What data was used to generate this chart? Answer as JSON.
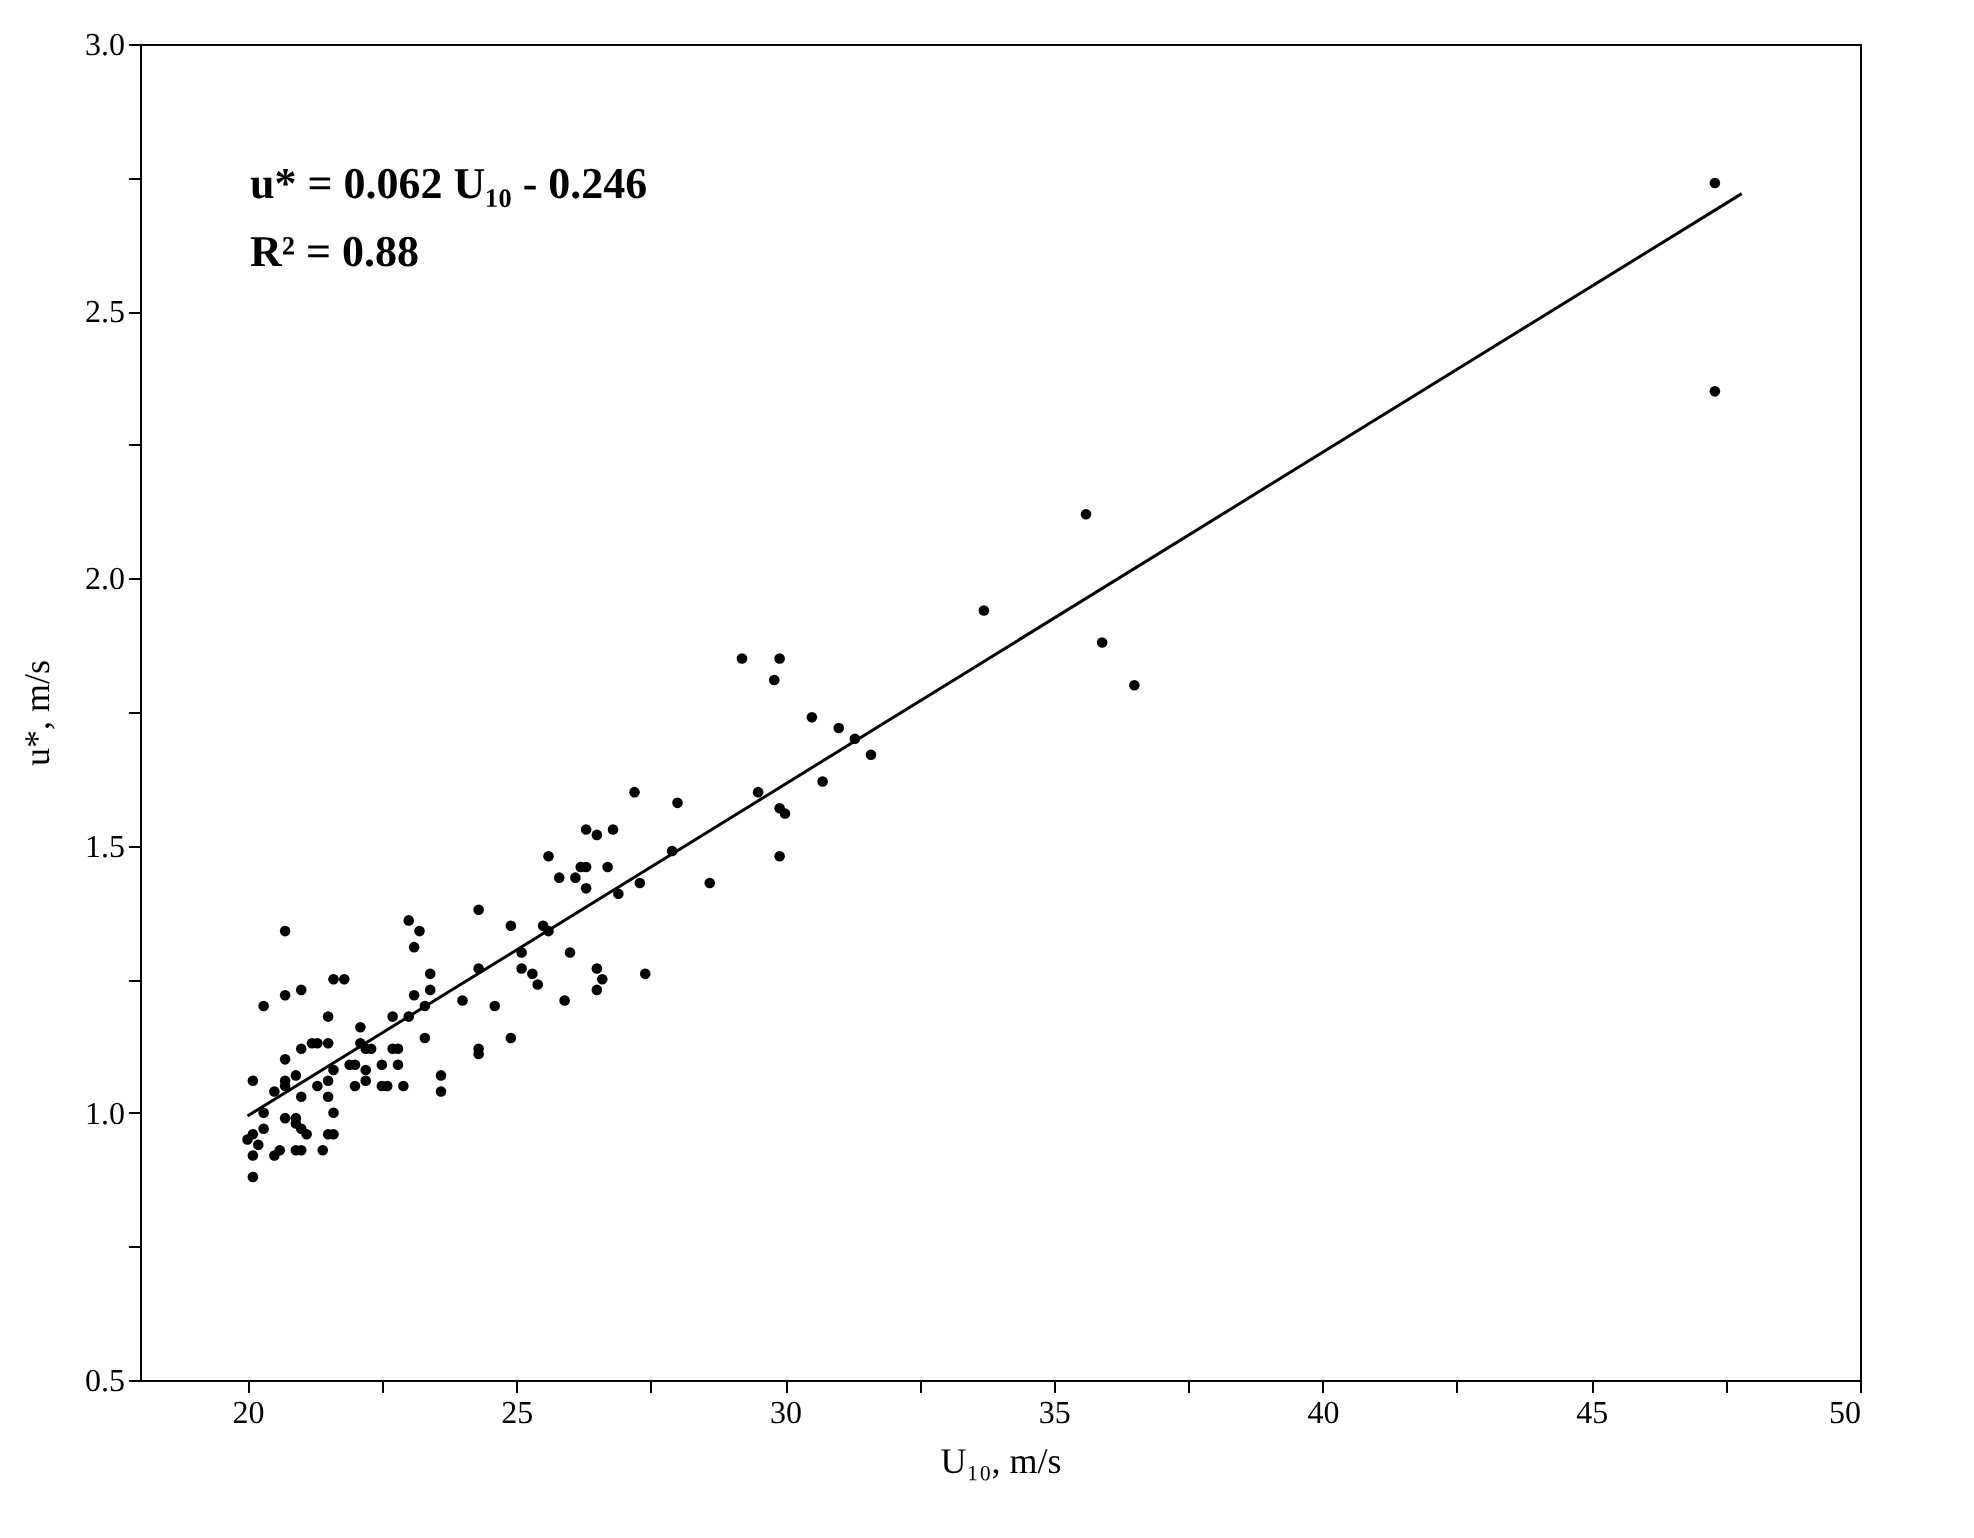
{
  "chart_data": {
    "type": "scatter",
    "xlabel": "U₁₀, m/s",
    "ylabel": "u*, m/s",
    "annotations": [
      "u* = 0.062 U₁₀ - 0.246",
      "R² = 0.88"
    ],
    "xlim": [
      18,
      50
    ],
    "ylim": [
      0.5,
      3.0
    ],
    "xticks": [
      20,
      {
        "value": 22.5,
        "label": null
      },
      25,
      {
        "value": 27.5,
        "label": null
      },
      30,
      {
        "value": 32.5,
        "label": null
      },
      35,
      {
        "value": 37.5,
        "label": null
      },
      40,
      {
        "value": 42.5,
        "label": null
      },
      45,
      {
        "value": 47.5,
        "label": null
      },
      50
    ],
    "yticks": [
      {
        "value": 0.5,
        "label": "0.5"
      },
      {
        "value": 0.75,
        "label": null
      },
      {
        "value": 1.0,
        "label": "1.0"
      },
      {
        "value": 1.25,
        "label": null
      },
      {
        "value": 1.5,
        "label": "1.5"
      },
      {
        "value": 1.75,
        "label": null
      },
      {
        "value": 2.0,
        "label": "2.0"
      },
      {
        "value": 2.25,
        "label": null
      },
      {
        "value": 2.5,
        "label": "2.5"
      },
      {
        "value": 2.75,
        "label": null
      },
      {
        "value": 3.0,
        "label": "3.0"
      }
    ],
    "grid": false,
    "marker": "circle",
    "series": [
      {
        "color": "#000000",
        "x": [
          25.6,
          25.8,
          20.7,
          23.0,
          23.2,
          23.1,
          24.3,
          24.9,
          25.5,
          25.6,
          20.3,
          20.7,
          21.0,
          21.6,
          21.8,
          23.4,
          23.4,
          23.1,
          24.3,
          25.1,
          25.1,
          25.3,
          25.4,
          24.0,
          24.6,
          25.9,
          21.5,
          22.7,
          23.0,
          23.3,
          23.3,
          21.0,
          21.2,
          21.3,
          21.5,
          22.1,
          22.1,
          22.2,
          22.3,
          20.7,
          21.6,
          21.9,
          22.0,
          22.2,
          22.7,
          22.8,
          22.5,
          22.8,
          24.3,
          24.3,
          24.9,
          20.1,
          20.5,
          20.7,
          20.7,
          20.9,
          21.3,
          21.5,
          22.0,
          22.2,
          22.5,
          22.6,
          22.9,
          23.6,
          23.6,
          21.0,
          21.5,
          20.3,
          20.7,
          20.9,
          21.6,
          20.9,
          20.0,
          20.1,
          20.3,
          21.0,
          21.1,
          21.5,
          21.6,
          20.2,
          20.1,
          20.5,
          20.6,
          20.9,
          21.0,
          21.4,
          20.1,
          29.2,
          29.9,
          29.8,
          30.5,
          31.0,
          31.3,
          31.6,
          30.7,
          29.5,
          29.9,
          30.0,
          29.9,
          27.2,
          28.0,
          26.3,
          26.5,
          26.8,
          26.2,
          26.3,
          26.7,
          26.1,
          26.3,
          27.9,
          27.3,
          26.9,
          28.6,
          26.0,
          26.5,
          26.6,
          26.5,
          27.4,
          47.3,
          35.6,
          33.7,
          35.9,
          36.5,
          47.3
        ],
        "values": [
          1.48,
          1.44,
          1.34,
          1.36,
          1.34,
          1.31,
          1.38,
          1.35,
          1.35,
          1.34,
          1.2,
          1.22,
          1.23,
          1.25,
          1.25,
          1.26,
          1.23,
          1.22,
          1.27,
          1.3,
          1.27,
          1.26,
          1.24,
          1.21,
          1.2,
          1.21,
          1.18,
          1.18,
          1.18,
          1.2,
          1.14,
          1.12,
          1.13,
          1.13,
          1.13,
          1.16,
          1.13,
          1.12,
          1.12,
          1.1,
          1.08,
          1.09,
          1.09,
          1.08,
          1.12,
          1.12,
          1.09,
          1.09,
          1.12,
          1.11,
          1.14,
          1.06,
          1.04,
          1.05,
          1.06,
          1.07,
          1.05,
          1.06,
          1.05,
          1.06,
          1.05,
          1.05,
          1.05,
          1.07,
          1.04,
          1.03,
          1.03,
          1.0,
          0.99,
          0.99,
          1.0,
          0.98,
          0.95,
          0.96,
          0.97,
          0.97,
          0.96,
          0.96,
          0.96,
          0.94,
          0.92,
          0.92,
          0.93,
          0.93,
          0.93,
          0.93,
          0.88,
          1.85,
          1.85,
          1.81,
          1.74,
          1.72,
          1.7,
          1.67,
          1.62,
          1.6,
          1.57,
          1.56,
          1.48,
          1.6,
          1.58,
          1.53,
          1.52,
          1.53,
          1.46,
          1.46,
          1.46,
          1.44,
          1.42,
          1.49,
          1.43,
          1.41,
          1.43,
          1.3,
          1.27,
          1.25,
          1.23,
          1.26,
          2.35,
          2.12,
          1.94,
          1.88,
          1.8,
          2.74
        ]
      },
      {
        "type": "line",
        "color": "#000000",
        "line_style": "solid",
        "marker": "none",
        "x": [
          20,
          47.8
        ],
        "values": [
          0.994,
          2.72
        ]
      }
    ]
  }
}
